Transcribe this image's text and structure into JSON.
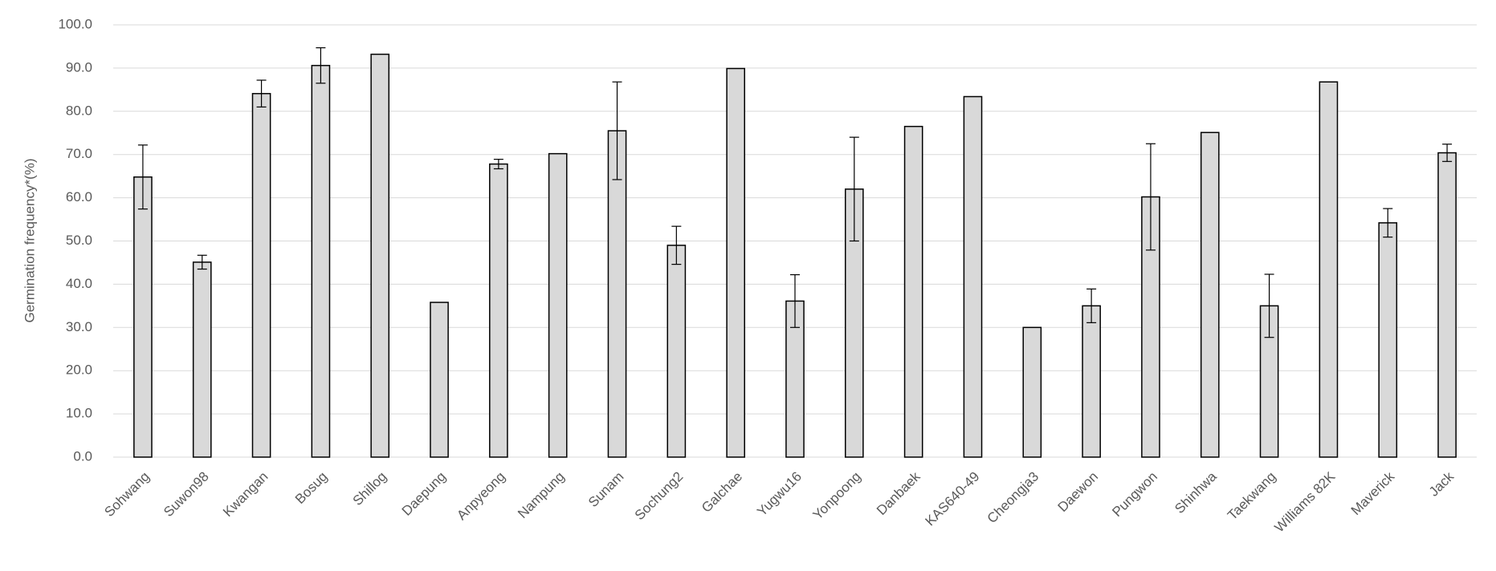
{
  "chart_data": {
    "type": "bar",
    "y_label": "Germination frequency*(%)",
    "categories": [
      "Sohwang",
      "Suwon98",
      "Kwangan",
      "Bosug",
      "Shillog",
      "Daepung",
      "Anpyeong",
      "Nampung",
      "Sunam",
      "Sochung2",
      "Galchae",
      "Yugwu16",
      "Yonpoong",
      "Danbaek",
      "KAS640-49",
      "Cheongja3",
      "Daewon",
      "Pungwon",
      "Shinhwa",
      "Taekwang",
      "Williams 82K",
      "Maverick",
      "Jack"
    ],
    "values": [
      64.8,
      45.1,
      84.1,
      90.6,
      93.2,
      35.8,
      67.8,
      70.2,
      75.5,
      49.0,
      89.9,
      36.1,
      62.0,
      76.5,
      83.4,
      30.0,
      35.0,
      60.2,
      75.1,
      35.0,
      86.8,
      54.2,
      70.4
    ],
    "errors": [
      7.4,
      1.6,
      3.1,
      4.1,
      null,
      null,
      1.1,
      null,
      11.3,
      4.4,
      null,
      6.1,
      12.0,
      null,
      null,
      null,
      3.9,
      12.3,
      null,
      7.3,
      null,
      3.3,
      2.0
    ],
    "color": "#d9d9d9",
    "ylim": [
      0,
      100
    ],
    "yticks": [
      {
        "value": 0,
        "label": "0.0"
      },
      {
        "value": 10,
        "label": "10.0"
      },
      {
        "value": 20,
        "label": "20.0"
      },
      {
        "value": 30,
        "label": "30.0"
      },
      {
        "value": 40,
        "label": "40.0"
      },
      {
        "value": 50,
        "label": "50.0"
      },
      {
        "value": 60,
        "label": "60.0"
      },
      {
        "value": 70,
        "label": "70.0"
      },
      {
        "value": 80,
        "label": "80.0"
      },
      {
        "value": 90,
        "label": "90.0"
      },
      {
        "value": 100,
        "label": "100.0"
      }
    ],
    "grid": true
  }
}
